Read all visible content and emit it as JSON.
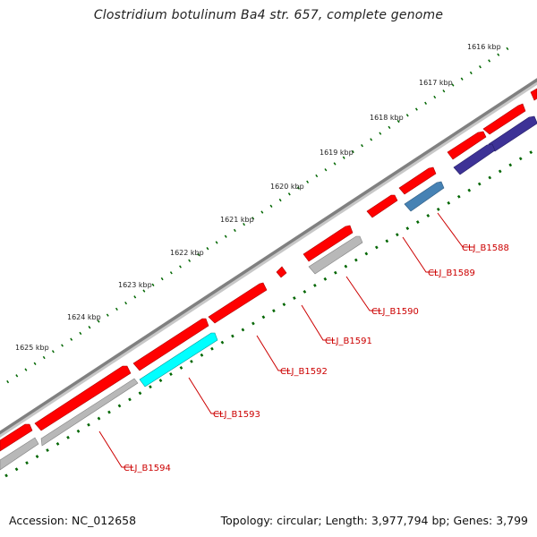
{
  "title": "Clostridium botulinum Ba4 str. 657, complete genome",
  "footer": {
    "accession": "Accession: NC_012658",
    "summary": "Topology: circular; Length: 3,977,794 bp; Genes: 3,799"
  },
  "colors": {
    "backbone": "#808080",
    "tick": "#006600",
    "gene_forward": "#ff0000",
    "gene_reverse_default": "#b8b8b8",
    "gene_highlight_cyan": "#00ffff",
    "gene_highlight_steelblue": "#4682b4",
    "gene_highlight_navy": "#3d3296",
    "label": "#cc0000"
  },
  "scale": {
    "unit": "kbp",
    "ticks": [
      {
        "value": 1616,
        "label": "1616 kbp"
      },
      {
        "value": 1617,
        "label": "1617 kbp"
      },
      {
        "value": 1618,
        "label": "1618 kbp"
      },
      {
        "value": 1619,
        "label": "1619 kbp"
      },
      {
        "value": 1620,
        "label": "1620 kbp"
      },
      {
        "value": 1621,
        "label": "1621 kbp"
      },
      {
        "value": 1622,
        "label": "1622 kbp"
      },
      {
        "value": 1623,
        "label": "1623 kbp"
      },
      {
        "value": 1624,
        "label": "1624 kbp"
      },
      {
        "value": 1625,
        "label": "1625 kbp"
      }
    ]
  },
  "gene_labels": [
    {
      "name": "CLJ_B1588"
    },
    {
      "name": "CLJ_B1589"
    },
    {
      "name": "CLJ_B1590"
    },
    {
      "name": "CLJ_B1591"
    },
    {
      "name": "CLJ_B1592"
    },
    {
      "name": "CLJ_B1593"
    },
    {
      "name": "CLJ_B1594"
    }
  ]
}
